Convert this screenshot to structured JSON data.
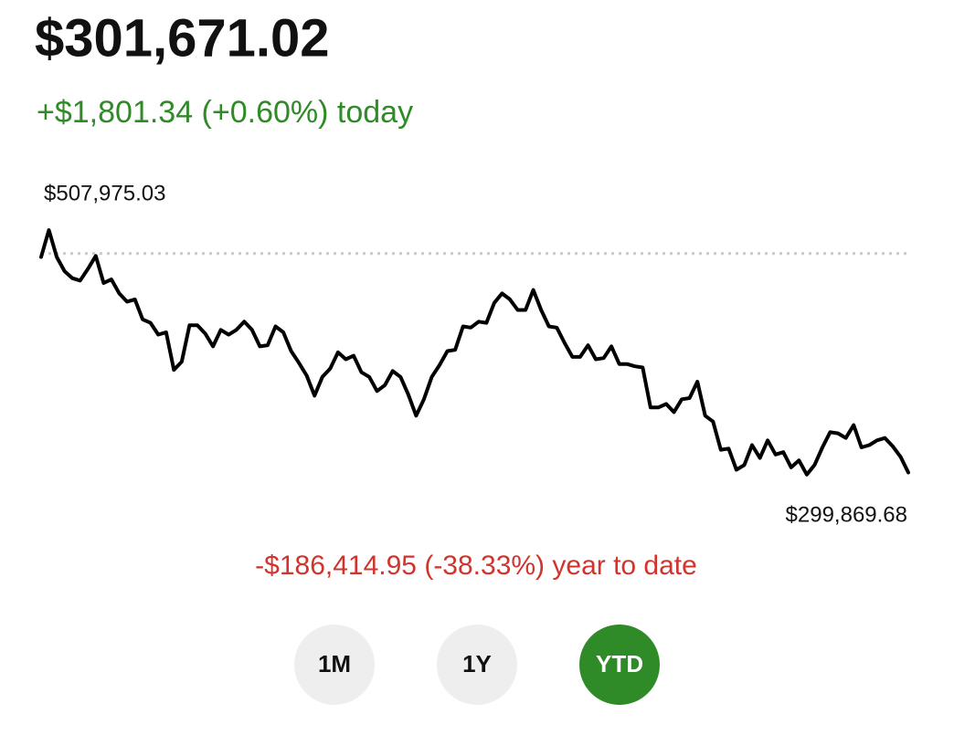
{
  "header": {
    "balance": "$301,671.02",
    "change_today": "+$1,801.34 (+0.60%) today"
  },
  "chart_data": {
    "type": "line",
    "color": "#000000",
    "high_label": "$507,975.03",
    "low_label": "$299,869.68",
    "reference_value": 488085.97,
    "ylim": [
      290000,
      520000
    ],
    "values": [
      485000,
      507975.03,
      485000,
      473000,
      467000,
      465000,
      475000,
      486000,
      463000,
      466000,
      454000,
      447000,
      449000,
      432000,
      429000,
      419000,
      421000,
      389000,
      396000,
      427000,
      427000,
      420000,
      409000,
      423000,
      419000,
      423000,
      430000,
      423000,
      409000,
      410000,
      426000,
      421000,
      405000,
      395000,
      384000,
      367000,
      383000,
      390000,
      404000,
      398000,
      401000,
      387000,
      383000,
      371000,
      376000,
      388000,
      383000,
      368000,
      350000,
      364000,
      383000,
      393000,
      405000,
      406000,
      426000,
      425000,
      430000,
      429000,
      446000,
      454000,
      449000,
      440000,
      440000,
      457000,
      440000,
      426000,
      425000,
      412000,
      400000,
      400000,
      410000,
      398000,
      399000,
      409000,
      394000,
      394000,
      392000,
      391000,
      357000,
      357000,
      360000,
      353000,
      364000,
      365000,
      379000,
      350000,
      345000,
      321000,
      322000,
      304000,
      308000,
      325000,
      314000,
      329000,
      317000,
      319000,
      306000,
      312000,
      299869.68,
      308000,
      323000,
      336000,
      335000,
      331000,
      342000,
      323000,
      325000,
      329000,
      331000,
      324000,
      315000,
      301671.02
    ]
  },
  "summary": "-$186,414.95 (-38.33%) year to date",
  "range_buttons": [
    {
      "label": "1M",
      "selected": false
    },
    {
      "label": "1Y",
      "selected": false
    },
    {
      "label": "YTD",
      "selected": true
    }
  ]
}
